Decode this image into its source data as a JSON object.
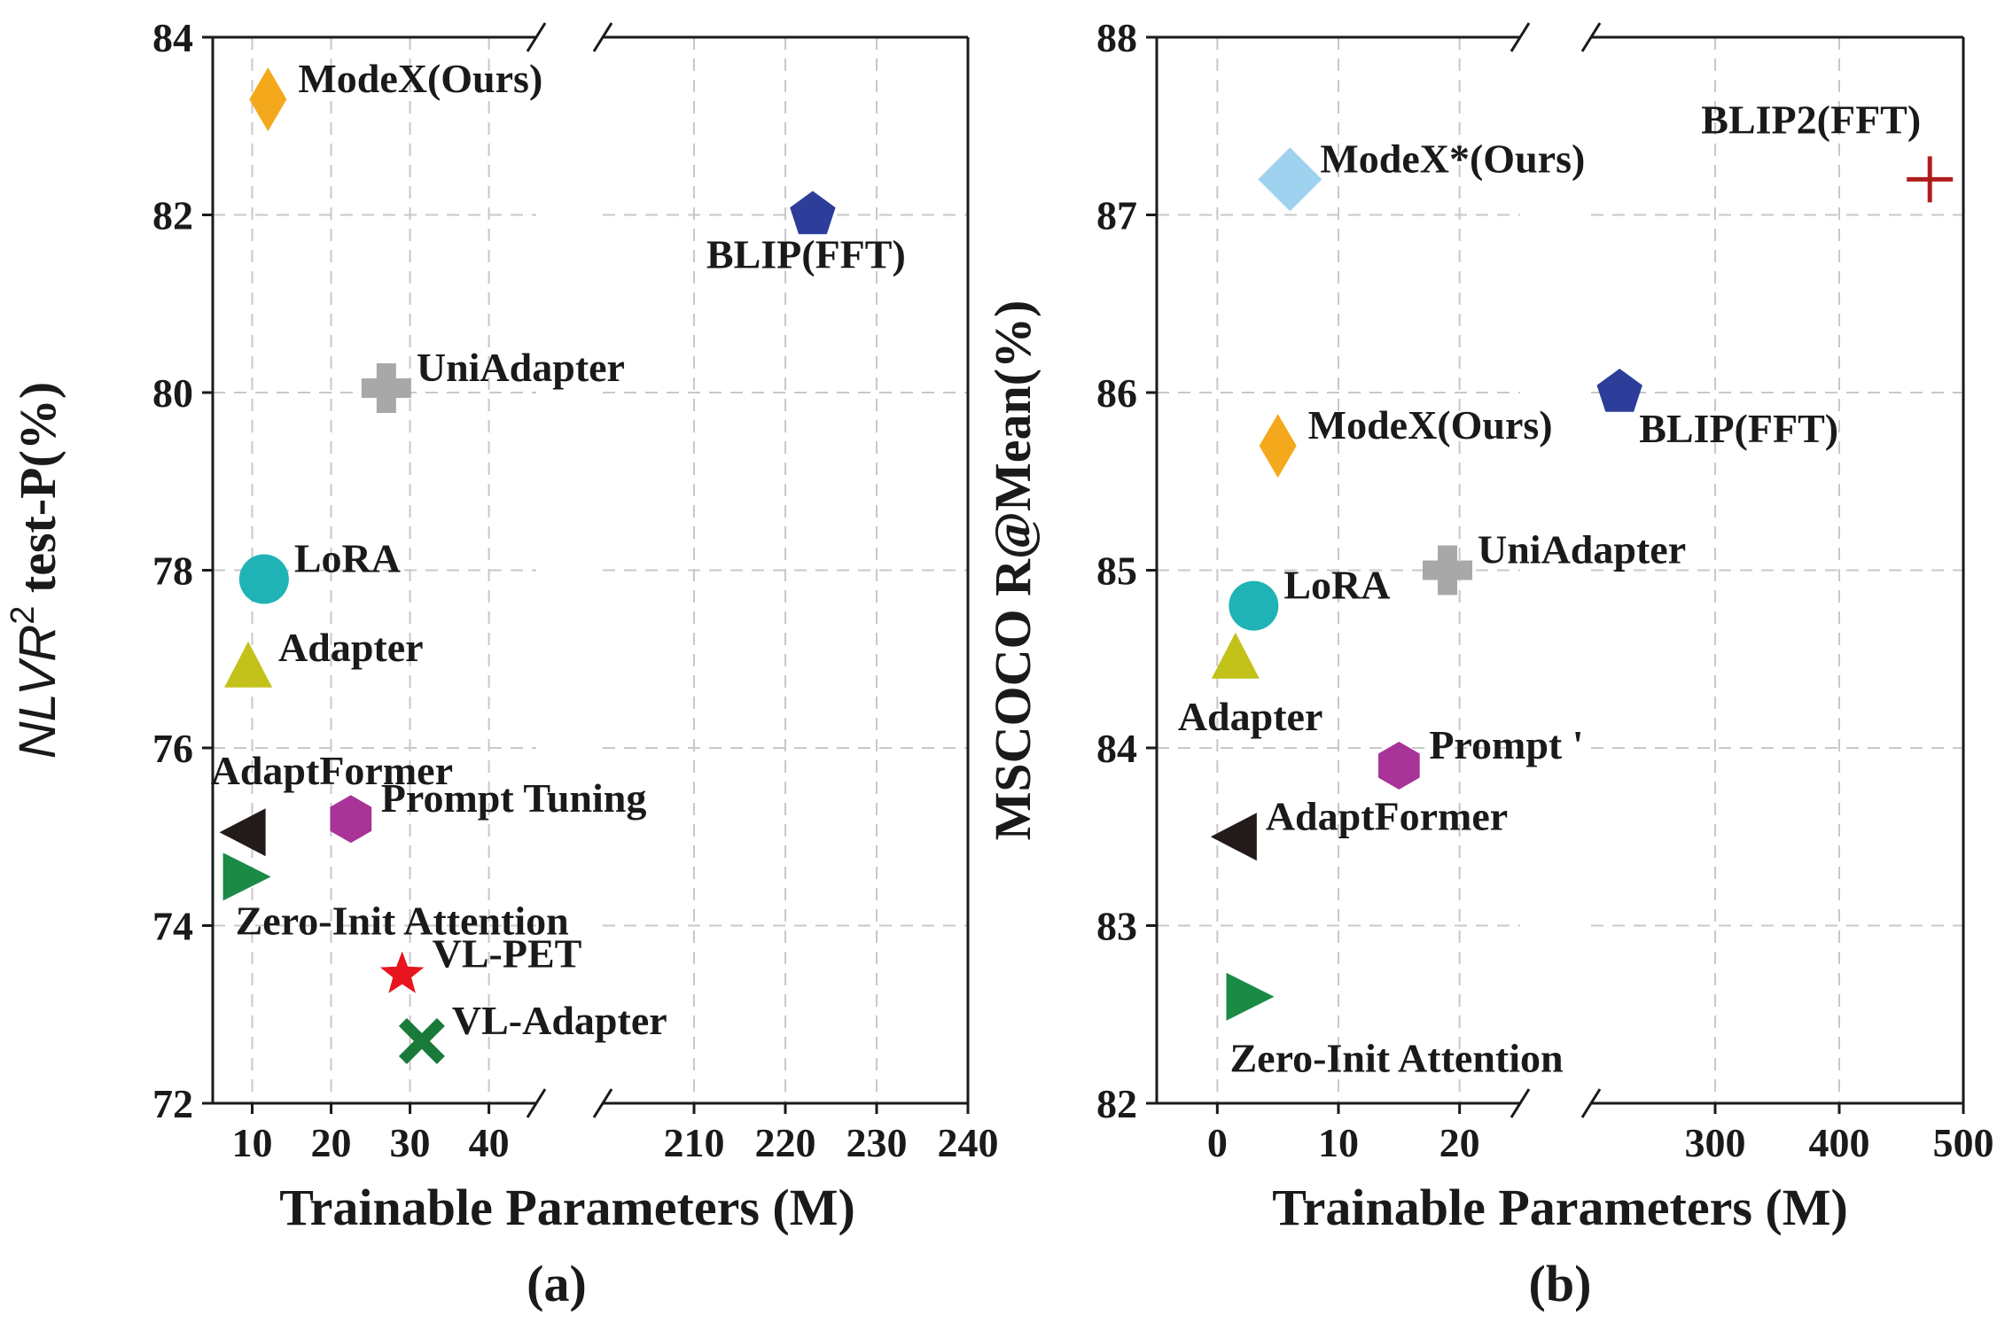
{
  "chart_data": [
    {
      "type": "scatter",
      "caption": "(a)",
      "xlabel": "Trainable Parameters (M)",
      "ylabel": "NLVR 2 test-P(%)",
      "ylabel_parts": {
        "pre": "NLVR",
        "sup": "2",
        "post": " test-P(%)"
      },
      "ylim": [
        72,
        84
      ],
      "yticks": [
        72,
        74,
        76,
        78,
        80,
        82,
        84
      ],
      "x_broken": true,
      "x_segments": [
        {
          "range": [
            5,
            46
          ],
          "ticks": [
            10,
            20,
            30,
            40
          ]
        },
        {
          "range": [
            200,
            240
          ],
          "ticks": [
            210,
            220,
            230,
            240
          ]
        }
      ],
      "grid": true,
      "points": [
        {
          "name": "ModeX(Ours)",
          "x": 12,
          "y": 83.3,
          "marker": "diamond",
          "color": "#f4a81c",
          "label_color": "#e0141e",
          "label_pos": "right"
        },
        {
          "name": "BLIP(FFT)",
          "x": 223,
          "y": 82.0,
          "marker": "pentagon",
          "color": "#2c3e9a",
          "label_pos": "below"
        },
        {
          "name": "UniAdapter",
          "x": 27,
          "y": 80.05,
          "marker": "plus",
          "color": "#a8a8a8",
          "label_pos": "right"
        },
        {
          "name": "LoRA",
          "x": 11.5,
          "y": 77.9,
          "marker": "circle",
          "color": "#1fb3b5",
          "label_pos": "right"
        },
        {
          "name": "Adapter",
          "x": 9.5,
          "y": 76.9,
          "marker": "triangle-up",
          "color": "#c2c21a",
          "label_pos": "right"
        },
        {
          "name": "AdaptFormer",
          "x": 9,
          "y": 75.05,
          "marker": "triangle-left",
          "color": "#231a1a",
          "label_pos": "above"
        },
        {
          "name": "Prompt Tuning",
          "x": 22.5,
          "y": 75.2,
          "marker": "hexagon",
          "color": "#a83497",
          "label_pos": "right"
        },
        {
          "name": "Zero-Init Attention",
          "x": 9,
          "y": 74.55,
          "marker": "triangle-right",
          "color": "#1a8a45",
          "label_pos": "below"
        },
        {
          "name": "VL-PET",
          "x": 29,
          "y": 73.45,
          "marker": "star",
          "color": "#e8141e",
          "label_pos": "right"
        },
        {
          "name": "VL-Adapter",
          "x": 31.5,
          "y": 72.7,
          "marker": "x",
          "color": "#1a7a3a",
          "label_pos": "right"
        }
      ]
    },
    {
      "type": "scatter",
      "caption": "(b)",
      "xlabel": "Trainable Parameters (M)",
      "ylabel": "MSCOCO R@Mean(%)",
      "ylim": [
        82,
        88
      ],
      "yticks": [
        82,
        83,
        84,
        85,
        86,
        87,
        88
      ],
      "x_broken": true,
      "x_segments": [
        {
          "range": [
            -5,
            25
          ],
          "ticks": [
            0,
            10,
            20
          ]
        },
        {
          "range": [
            200,
            500
          ],
          "ticks": [
            300,
            400,
            500
          ]
        }
      ],
      "grid": true,
      "points": [
        {
          "name": "BLIP2(FFT)",
          "x": 473,
          "y": 87.2,
          "marker": "plus-thin",
          "color": "#b01c1c",
          "label_pos": "above-left"
        },
        {
          "name": "ModeX*(Ours)",
          "x": 6,
          "y": 87.2,
          "marker": "diamond-wide",
          "color": "#9fd2ef",
          "label_color": "#e0141e",
          "label_pos": "right"
        },
        {
          "name": "BLIP(FFT)",
          "x": 223,
          "y": 86.0,
          "marker": "pentagon",
          "color": "#2c3e9a",
          "label_pos": "right-below"
        },
        {
          "name": "ModeX(Ours)",
          "x": 5,
          "y": 85.7,
          "marker": "diamond",
          "color": "#f4a81c",
          "label_color": "#e0141e",
          "label_pos": "right"
        },
        {
          "name": "UniAdapter",
          "x": 19,
          "y": 85.0,
          "marker": "plus",
          "color": "#a8a8a8",
          "label_pos": "right"
        },
        {
          "name": "LoRA",
          "x": 3,
          "y": 84.8,
          "marker": "circle",
          "color": "#1fb3b5",
          "label_pos": "right"
        },
        {
          "name": "Adapter",
          "x": 1.5,
          "y": 84.5,
          "marker": "triangle-up",
          "color": "#c2c21a",
          "label_pos": "below"
        },
        {
          "name": "Prompt '",
          "x": 15,
          "y": 83.9,
          "marker": "hexagon",
          "color": "#a83497",
          "label_pos": "right"
        },
        {
          "name": "AdaptFormer",
          "x": 1.5,
          "y": 83.5,
          "marker": "triangle-left",
          "color": "#231a1a",
          "label_pos": "right"
        },
        {
          "name": "Zero-Init Attention",
          "x": 2.5,
          "y": 82.6,
          "marker": "triangle-right",
          "color": "#1a8a45",
          "label_pos": "below"
        }
      ]
    }
  ]
}
